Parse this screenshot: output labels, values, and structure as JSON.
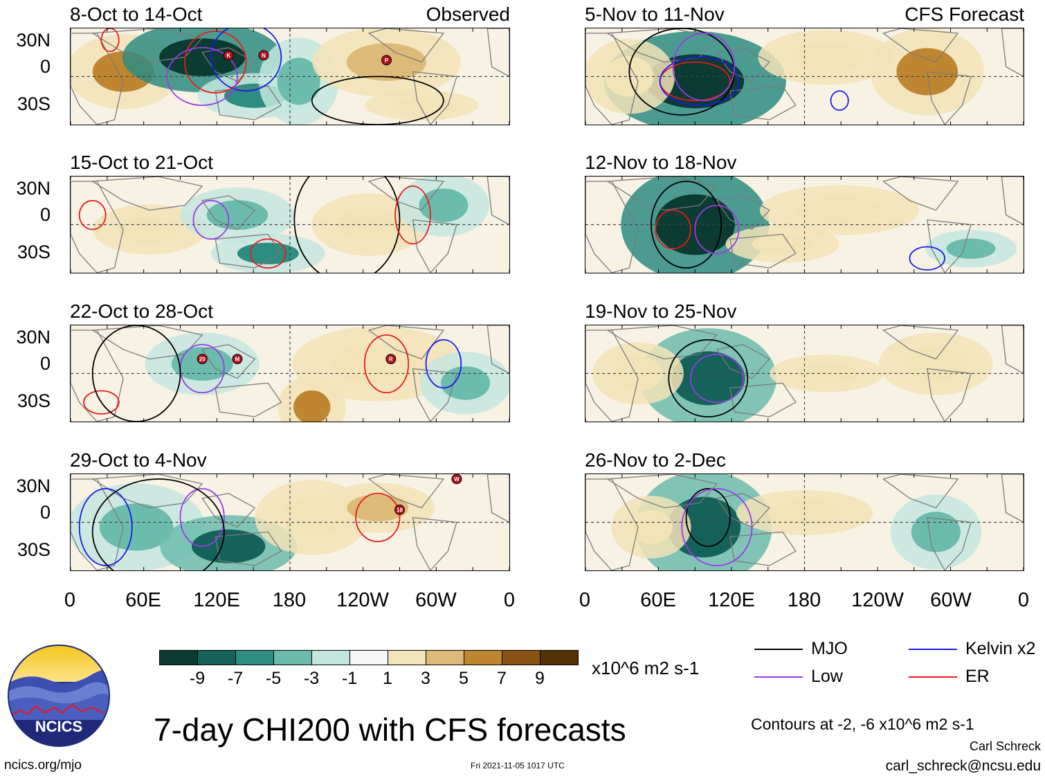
{
  "panels": [
    {
      "title": "8-Oct to 14-Oct",
      "label": "Observed",
      "side": "left",
      "row": 0
    },
    {
      "title": "15-Oct to 21-Oct",
      "label": "",
      "side": "left",
      "row": 1
    },
    {
      "title": "22-Oct to 28-Oct",
      "label": "",
      "side": "left",
      "row": 2
    },
    {
      "title": "29-Oct to 4-Nov",
      "label": "",
      "side": "left",
      "row": 3
    },
    {
      "title": "5-Nov to 11-Nov",
      "label": "CFS Forecast",
      "side": "right",
      "row": 0
    },
    {
      "title": "12-Nov to 18-Nov",
      "label": "",
      "side": "right",
      "row": 1
    },
    {
      "title": "19-Nov to 25-Nov",
      "label": "",
      "side": "right",
      "row": 2
    },
    {
      "title": "26-Nov to 2-Dec",
      "label": "",
      "side": "right",
      "row": 3
    }
  ],
  "lat_labels": [
    "30N",
    "0",
    "30S"
  ],
  "lon_labels": [
    "0",
    "60E",
    "120E",
    "180",
    "120W",
    "60W",
    "0"
  ],
  "colorbar": {
    "colors": [
      "#0b3b32",
      "#15625a",
      "#2e8c82",
      "#6cbcae",
      "#c4e6df",
      "#f7f7f7",
      "#f3e3b9",
      "#dcbb78",
      "#bf8632",
      "#8a5313",
      "#543005"
    ],
    "labels": [
      "-9",
      "-7",
      "-5",
      "-3",
      "-1",
      "1",
      "3",
      "5",
      "7",
      "9"
    ],
    "units": "x10^6 m2 s-1"
  },
  "legend": [
    {
      "name": "MJO",
      "color": "#000000"
    },
    {
      "name": "Low",
      "color": "#9a3ae8"
    },
    {
      "name": "Kelvin x2",
      "color": "#1a1ae8"
    },
    {
      "name": "ER",
      "color": "#e81a1a"
    }
  ],
  "main_title": "7-day CHI200 with CFS forecasts",
  "contours_note": "Contours at -2, -6 x10^6 m2 s-1",
  "author": "Carl Schreck",
  "email": "carl_schreck@ncsu.edu",
  "website": "ncics.org/mjo",
  "timestamp": "Fri 2021-11-05 1017 UTC",
  "logo_text": "NCICS",
  "storm_markers": [
    {
      "panel": 0,
      "letter": "K"
    },
    {
      "panel": 0,
      "letter": "N"
    },
    {
      "panel": 0,
      "letter": "P"
    },
    {
      "panel": 2,
      "letter": "20"
    },
    {
      "panel": 2,
      "letter": "M"
    },
    {
      "panel": 2,
      "letter": "R"
    },
    {
      "panel": 3,
      "letter": "18"
    },
    {
      "panel": 3,
      "letter": "W"
    }
  ]
}
